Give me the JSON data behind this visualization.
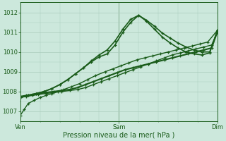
{
  "xlabel": "Pression niveau de la mer( hPa )",
  "bg_color": "#cce8dc",
  "grid_color": "#aaccbc",
  "line_color": "#1a5c1a",
  "ylim": [
    1006.5,
    1012.5
  ],
  "yticks": [
    1007,
    1008,
    1009,
    1010,
    1011,
    1012
  ],
  "xtick_labels": [
    "Ven",
    "Sam",
    "Dim"
  ],
  "xtick_positions": [
    0,
    0.5,
    1.0
  ],
  "series": [
    {
      "x": [
        0.0,
        0.02,
        0.04,
        0.07,
        0.1,
        0.13,
        0.16,
        0.19,
        0.22,
        0.26,
        0.3,
        0.34,
        0.38,
        0.43,
        0.47,
        0.51,
        0.55,
        0.59,
        0.63,
        0.67,
        0.71,
        0.75,
        0.79,
        0.83,
        0.87,
        0.91,
        0.95,
        1.0
      ],
      "y": [
        1006.8,
        1007.1,
        1007.4,
        1007.55,
        1007.7,
        1007.8,
        1007.9,
        1008.0,
        1008.1,
        1008.25,
        1008.4,
        1008.6,
        1008.8,
        1009.0,
        1009.15,
        1009.3,
        1009.45,
        1009.6,
        1009.7,
        1009.8,
        1009.9,
        1010.0,
        1010.1,
        1010.2,
        1010.3,
        1010.4,
        1010.5,
        1011.1
      ],
      "lw": 1.0
    },
    {
      "x": [
        0.0,
        0.03,
        0.06,
        0.09,
        0.13,
        0.17,
        0.21,
        0.25,
        0.29,
        0.33,
        0.37,
        0.41,
        0.45,
        0.49,
        0.53,
        0.57,
        0.61,
        0.65,
        0.69,
        0.73,
        0.77,
        0.81,
        0.85,
        0.89,
        0.93,
        0.97,
        1.0
      ],
      "y": [
        1007.7,
        1007.75,
        1007.8,
        1007.85,
        1007.9,
        1007.95,
        1008.0,
        1008.05,
        1008.1,
        1008.2,
        1008.35,
        1008.5,
        1008.65,
        1008.8,
        1008.95,
        1009.1,
        1009.25,
        1009.4,
        1009.55,
        1009.7,
        1009.85,
        1009.95,
        1010.05,
        1010.15,
        1010.25,
        1010.35,
        1011.0
      ],
      "lw": 1.0
    },
    {
      "x": [
        0.0,
        0.03,
        0.06,
        0.09,
        0.13,
        0.17,
        0.21,
        0.25,
        0.29,
        0.33,
        0.37,
        0.41,
        0.45,
        0.49,
        0.53,
        0.57,
        0.61,
        0.65,
        0.69,
        0.73,
        0.77,
        0.81,
        0.85,
        0.89,
        0.93,
        0.97,
        1.0
      ],
      "y": [
        1007.75,
        1007.8,
        1007.85,
        1007.9,
        1007.95,
        1008.0,
        1008.05,
        1008.1,
        1008.2,
        1008.35,
        1008.5,
        1008.65,
        1008.8,
        1008.95,
        1009.1,
        1009.2,
        1009.3,
        1009.4,
        1009.5,
        1009.6,
        1009.7,
        1009.8,
        1009.9,
        1010.0,
        1010.1,
        1010.2,
        1011.05
      ],
      "lw": 1.5
    },
    {
      "x": [
        0.0,
        0.04,
        0.08,
        0.12,
        0.16,
        0.2,
        0.24,
        0.28,
        0.32,
        0.36,
        0.4,
        0.44,
        0.48,
        0.52,
        0.56,
        0.6,
        0.64,
        0.68,
        0.72,
        0.76,
        0.8,
        0.84,
        0.88,
        0.92,
        0.96,
        1.0
      ],
      "y": [
        1007.7,
        1007.8,
        1007.9,
        1008.0,
        1008.15,
        1008.35,
        1008.6,
        1008.9,
        1009.2,
        1009.55,
        1009.85,
        1010.1,
        1010.55,
        1011.15,
        1011.65,
        1011.85,
        1011.6,
        1011.3,
        1010.95,
        1010.7,
        1010.45,
        1010.25,
        1010.1,
        1010.0,
        1010.0,
        1011.1
      ],
      "lw": 1.2
    },
    {
      "x": [
        0.0,
        0.04,
        0.08,
        0.12,
        0.16,
        0.2,
        0.24,
        0.28,
        0.32,
        0.36,
        0.4,
        0.44,
        0.48,
        0.52,
        0.56,
        0.6,
        0.64,
        0.68,
        0.72,
        0.76,
        0.8,
        0.84,
        0.88,
        0.92,
        0.96,
        1.0
      ],
      "y": [
        1007.7,
        1007.8,
        1007.9,
        1008.0,
        1008.15,
        1008.35,
        1008.6,
        1008.9,
        1009.2,
        1009.5,
        1009.75,
        1009.9,
        1010.35,
        1011.0,
        1011.5,
        1011.85,
        1011.55,
        1011.15,
        1010.75,
        1010.45,
        1010.2,
        1010.0,
        1009.9,
        1009.85,
        1009.95,
        1011.1
      ],
      "lw": 1.2
    }
  ]
}
